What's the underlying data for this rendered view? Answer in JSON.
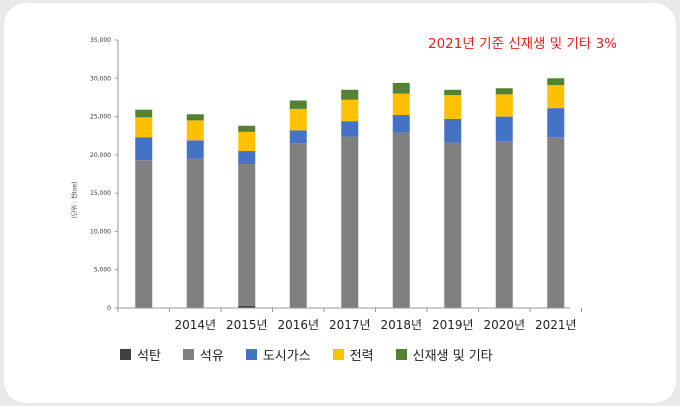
{
  "annotation": "2021년 기준 신재생 및 기타 3%",
  "chart_data": {
    "type": "bar",
    "stacked": true,
    "categories": [
      "",
      "2014년",
      "2015년",
      "2016년",
      "2017년",
      "2018년",
      "2019년",
      "2020년",
      "2021년"
    ],
    "series": [
      {
        "name": "석탄",
        "color": "#404040",
        "values": [
          0,
          0,
          300,
          0,
          0,
          0,
          0,
          0,
          0
        ]
      },
      {
        "name": "석유",
        "color": "#808080",
        "values": [
          19300,
          19500,
          18500,
          21500,
          22400,
          22900,
          21600,
          21800,
          22300
        ]
      },
      {
        "name": "도시가스",
        "color": "#4472c4",
        "values": [
          3000,
          2400,
          1700,
          1700,
          2000,
          2300,
          3100,
          3200,
          3800
        ]
      },
      {
        "name": "전력",
        "color": "#ffc000",
        "values": [
          2600,
          2600,
          2500,
          2800,
          2800,
          2800,
          3100,
          2900,
          3000
        ]
      },
      {
        "name": "신재생 및 기타",
        "color": "#548235",
        "values": [
          1000,
          800,
          800,
          1100,
          1300,
          1400,
          700,
          800,
          900
        ]
      }
    ],
    "ylim": [
      0,
      35000
    ],
    "yticks": [
      "0",
      "5,000",
      "10,000",
      "15,000",
      "20,000",
      "25,000",
      "30,000",
      "35,000"
    ],
    "ylabel": "(단위 : 천toe)",
    "xlabel": "",
    "grid": false,
    "legend_position": "bottom"
  }
}
